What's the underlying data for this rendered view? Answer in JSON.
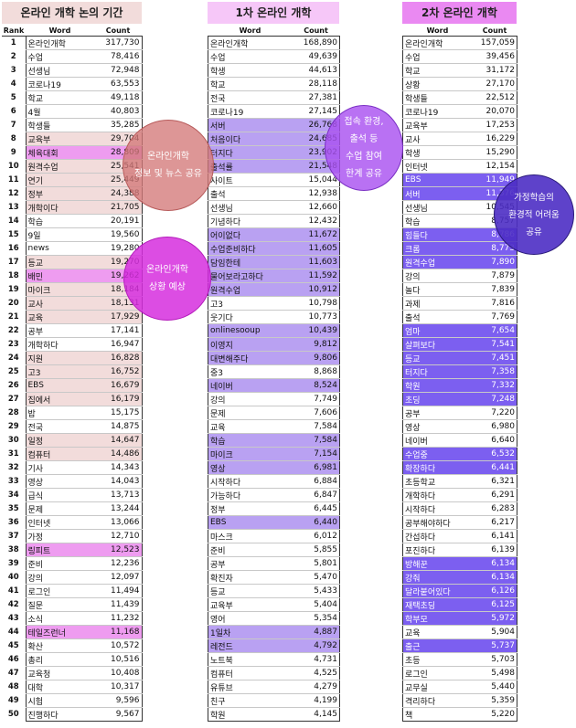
{
  "panels": [
    {
      "title": "온라인 개학 논의 기간",
      "title_color": "#f2dcdb",
      "headers": {
        "rank": "Rank",
        "word": "Word",
        "count": "Count"
      },
      "rows": [
        {
          "rank": "1",
          "word": "온라인개학",
          "count": "317,730",
          "hl": ""
        },
        {
          "rank": "2",
          "word": "수업",
          "count": "78,416",
          "hl": ""
        },
        {
          "rank": "3",
          "word": "선생님",
          "count": "72,948",
          "hl": ""
        },
        {
          "rank": "4",
          "word": "코로나19",
          "count": "63,553",
          "hl": ""
        },
        {
          "rank": "5",
          "word": "학교",
          "count": "49,118",
          "hl": ""
        },
        {
          "rank": "6",
          "word": "4월",
          "count": "40,803",
          "hl": ""
        },
        {
          "rank": "7",
          "word": "학생들",
          "count": "35,285",
          "hl": ""
        },
        {
          "rank": "8",
          "word": "교육부",
          "count": "29,704",
          "hl": "#f2dcdb"
        },
        {
          "rank": "9",
          "word": "체육대회",
          "count": "28,809",
          "hl": "#ee9cf0"
        },
        {
          "rank": "10",
          "word": "원격수업",
          "count": "25,541",
          "hl": "#f2dcdb"
        },
        {
          "rank": "11",
          "word": "연기",
          "count": "25,449",
          "hl": "#f2dcdb"
        },
        {
          "rank": "12",
          "word": "정부",
          "count": "24,388",
          "hl": "#f2dcdb"
        },
        {
          "rank": "13",
          "word": "개학이다",
          "count": "21,705",
          "hl": "#f2dcdb"
        },
        {
          "rank": "14",
          "word": "학습",
          "count": "20,191",
          "hl": ""
        },
        {
          "rank": "15",
          "word": "9일",
          "count": "19,560",
          "hl": ""
        },
        {
          "rank": "16",
          "word": "news",
          "count": "19,280",
          "hl": ""
        },
        {
          "rank": "17",
          "word": "등교",
          "count": "19,270",
          "hl": "#f2dcdb"
        },
        {
          "rank": "18",
          "word": "배민",
          "count": "19,262",
          "hl": "#ee9cf0"
        },
        {
          "rank": "19",
          "word": "마이크",
          "count": "18,184",
          "hl": "#f2dcdb"
        },
        {
          "rank": "20",
          "word": "교사",
          "count": "18,131",
          "hl": "#f2dcdb"
        },
        {
          "rank": "21",
          "word": "교육",
          "count": "17,929",
          "hl": "#f2dcdb"
        },
        {
          "rank": "22",
          "word": "공부",
          "count": "17,141",
          "hl": ""
        },
        {
          "rank": "23",
          "word": "개학하다",
          "count": "16,947",
          "hl": ""
        },
        {
          "rank": "24",
          "word": "지원",
          "count": "16,828",
          "hl": "#f2dcdb"
        },
        {
          "rank": "25",
          "word": "고3",
          "count": "16,752",
          "hl": "#f2dcdb"
        },
        {
          "rank": "26",
          "word": "EBS",
          "count": "16,679",
          "hl": "#f2dcdb"
        },
        {
          "rank": "27",
          "word": "집에서",
          "count": "16,179",
          "hl": "#f2dcdb"
        },
        {
          "rank": "28",
          "word": "밥",
          "count": "15,175",
          "hl": ""
        },
        {
          "rank": "29",
          "word": "전국",
          "count": "14,875",
          "hl": ""
        },
        {
          "rank": "30",
          "word": "일정",
          "count": "14,647",
          "hl": "#f2dcdb"
        },
        {
          "rank": "31",
          "word": "컴퓨터",
          "count": "14,486",
          "hl": "#f2dcdb"
        },
        {
          "rank": "32",
          "word": "기사",
          "count": "14,343",
          "hl": ""
        },
        {
          "rank": "33",
          "word": "영상",
          "count": "14,043",
          "hl": ""
        },
        {
          "rank": "34",
          "word": "급식",
          "count": "13,713",
          "hl": ""
        },
        {
          "rank": "35",
          "word": "문제",
          "count": "13,244",
          "hl": ""
        },
        {
          "rank": "36",
          "word": "인터넷",
          "count": "13,066",
          "hl": ""
        },
        {
          "rank": "37",
          "word": "가정",
          "count": "12,710",
          "hl": ""
        },
        {
          "rank": "38",
          "word": "링피트",
          "count": "12,523",
          "hl": "#ee9cf0"
        },
        {
          "rank": "39",
          "word": "준비",
          "count": "12,236",
          "hl": ""
        },
        {
          "rank": "40",
          "word": "강의",
          "count": "12,097",
          "hl": ""
        },
        {
          "rank": "41",
          "word": "로그인",
          "count": "11,494",
          "hl": ""
        },
        {
          "rank": "42",
          "word": "질문",
          "count": "11,439",
          "hl": ""
        },
        {
          "rank": "43",
          "word": "소식",
          "count": "11,232",
          "hl": ""
        },
        {
          "rank": "44",
          "word": "테일즈런너",
          "count": "11,168",
          "hl": "#ee9cf0"
        },
        {
          "rank": "45",
          "word": "확산",
          "count": "10,572",
          "hl": ""
        },
        {
          "rank": "46",
          "word": "총리",
          "count": "10,516",
          "hl": ""
        },
        {
          "rank": "47",
          "word": "교육청",
          "count": "10,408",
          "hl": ""
        },
        {
          "rank": "48",
          "word": "대학",
          "count": "10,317",
          "hl": ""
        },
        {
          "rank": "49",
          "word": "시험",
          "count": "9,596",
          "hl": ""
        },
        {
          "rank": "50",
          "word": "진행하다",
          "count": "9,567",
          "hl": ""
        }
      ]
    },
    {
      "title": "1차 온라인 개학",
      "title_color": "#f6c7f8",
      "headers": {
        "word": "Word",
        "count": "Count"
      },
      "rows": [
        {
          "word": "온라인개학",
          "count": "168,890",
          "hl": ""
        },
        {
          "word": "수업",
          "count": "49,639",
          "hl": ""
        },
        {
          "word": "학생",
          "count": "44,613",
          "hl": ""
        },
        {
          "word": "학교",
          "count": "28,118",
          "hl": ""
        },
        {
          "word": "전국",
          "count": "27,381",
          "hl": ""
        },
        {
          "word": "코로나19",
          "count": "27,145",
          "hl": ""
        },
        {
          "word": "서버",
          "count": "26,768",
          "hl": "#b9a1f2"
        },
        {
          "word": "처음이다",
          "count": "24,685",
          "hl": "#b9a1f2"
        },
        {
          "word": "터지다",
          "count": "23,902",
          "hl": "#b9a1f2"
        },
        {
          "word": "출석률",
          "count": "21,548",
          "hl": "#b9a1f2"
        },
        {
          "word": "사이트",
          "count": "15,044",
          "hl": ""
        },
        {
          "word": "출석",
          "count": "12,938",
          "hl": ""
        },
        {
          "word": "선생님",
          "count": "12,660",
          "hl": ""
        },
        {
          "word": "기념하다",
          "count": "12,432",
          "hl": ""
        },
        {
          "word": "어이없다",
          "count": "11,672",
          "hl": "#b9a1f2"
        },
        {
          "word": "수업준비하다",
          "count": "11,605",
          "hl": "#b9a1f2"
        },
        {
          "word": "담임한테",
          "count": "11,603",
          "hl": "#b9a1f2"
        },
        {
          "word": "물어보라고하다",
          "count": "11,592",
          "hl": "#b9a1f2"
        },
        {
          "word": "원격수업",
          "count": "10,912",
          "hl": "#b9a1f2"
        },
        {
          "word": "고3",
          "count": "10,798",
          "hl": ""
        },
        {
          "word": "웃기다",
          "count": "10,773",
          "hl": ""
        },
        {
          "word": "onlinesooup",
          "count": "10,439",
          "hl": "#b9a1f2"
        },
        {
          "word": "이영지",
          "count": "9,812",
          "hl": "#b9a1f2"
        },
        {
          "word": "대변해주다",
          "count": "9,806",
          "hl": "#b9a1f2"
        },
        {
          "word": "중3",
          "count": "8,868",
          "hl": ""
        },
        {
          "word": "네이버",
          "count": "8,524",
          "hl": "#b9a1f2"
        },
        {
          "word": "강의",
          "count": "7,749",
          "hl": ""
        },
        {
          "word": "문제",
          "count": "7,606",
          "hl": ""
        },
        {
          "word": "교육",
          "count": "7,584",
          "hl": ""
        },
        {
          "word": "학습",
          "count": "7,584",
          "hl": "#b9a1f2"
        },
        {
          "word": "마이크",
          "count": "7,154",
          "hl": "#b9a1f2"
        },
        {
          "word": "영상",
          "count": "6,981",
          "hl": "#b9a1f2"
        },
        {
          "word": "시작하다",
          "count": "6,884",
          "hl": ""
        },
        {
          "word": "가능하다",
          "count": "6,847",
          "hl": ""
        },
        {
          "word": "정부",
          "count": "6,445",
          "hl": ""
        },
        {
          "word": "EBS",
          "count": "6,440",
          "hl": "#b9a1f2"
        },
        {
          "word": "마스크",
          "count": "6,012",
          "hl": ""
        },
        {
          "word": "준비",
          "count": "5,855",
          "hl": ""
        },
        {
          "word": "공부",
          "count": "5,801",
          "hl": ""
        },
        {
          "word": "확진자",
          "count": "5,470",
          "hl": ""
        },
        {
          "word": "등교",
          "count": "5,433",
          "hl": ""
        },
        {
          "word": "교육부",
          "count": "5,404",
          "hl": ""
        },
        {
          "word": "영어",
          "count": "5,354",
          "hl": ""
        },
        {
          "word": "1일차",
          "count": "4,887",
          "hl": "#b9a1f2"
        },
        {
          "word": "레전드",
          "count": "4,792",
          "hl": "#b9a1f2"
        },
        {
          "word": "노트북",
          "count": "4,731",
          "hl": ""
        },
        {
          "word": "컴퓨터",
          "count": "4,525",
          "hl": ""
        },
        {
          "word": "유튜브",
          "count": "4,279",
          "hl": ""
        },
        {
          "word": "친구",
          "count": "4,199",
          "hl": ""
        },
        {
          "word": "학원",
          "count": "4,145",
          "hl": ""
        }
      ]
    },
    {
      "title": "2차 온라인 개학",
      "title_color": "#ea89f2",
      "headers": {
        "word": "Word",
        "count": "Count"
      },
      "rows": [
        {
          "word": "온라인개학",
          "count": "157,059",
          "hl": ""
        },
        {
          "word": "수업",
          "count": "39,456",
          "hl": ""
        },
        {
          "word": "학교",
          "count": "31,172",
          "hl": ""
        },
        {
          "word": "상황",
          "count": "27,170",
          "hl": ""
        },
        {
          "word": "학생들",
          "count": "22,512",
          "hl": ""
        },
        {
          "word": "코로나19",
          "count": "20,070",
          "hl": ""
        },
        {
          "word": "교육부",
          "count": "17,253",
          "hl": ""
        },
        {
          "word": "교사",
          "count": "16,229",
          "hl": ""
        },
        {
          "word": "학생",
          "count": "15,290",
          "hl": ""
        },
        {
          "word": "인터넷",
          "count": "12,154",
          "hl": ""
        },
        {
          "word": "EBS",
          "count": "11,949",
          "hl": "#7c5ff0"
        },
        {
          "word": "서버",
          "count": "11,376",
          "hl": "#7c5ff0"
        },
        {
          "word": "선생님",
          "count": "10,545",
          "hl": ""
        },
        {
          "word": "학습",
          "count": "8,757",
          "hl": ""
        },
        {
          "word": "힘들다",
          "count": "8,786",
          "hl": "#7c5ff0"
        },
        {
          "word": "크롬",
          "count": "8,773",
          "hl": "#7c5ff0"
        },
        {
          "word": "원격수업",
          "count": "7,890",
          "hl": "#7c5ff0"
        },
        {
          "word": "강의",
          "count": "7,879",
          "hl": ""
        },
        {
          "word": "놀다",
          "count": "7,839",
          "hl": ""
        },
        {
          "word": "과제",
          "count": "7,816",
          "hl": ""
        },
        {
          "word": "출석",
          "count": "7,769",
          "hl": ""
        },
        {
          "word": "엄마",
          "count": "7,654",
          "hl": "#7c5ff0"
        },
        {
          "word": "살펴보다",
          "count": "7,541",
          "hl": "#7c5ff0"
        },
        {
          "word": "등교",
          "count": "7,451",
          "hl": "#7c5ff0"
        },
        {
          "word": "터지다",
          "count": "7,358",
          "hl": "#7c5ff0"
        },
        {
          "word": "학원",
          "count": "7,332",
          "hl": "#7c5ff0"
        },
        {
          "word": "초딩",
          "count": "7,248",
          "hl": "#7c5ff0"
        },
        {
          "word": "공부",
          "count": "7,220",
          "hl": ""
        },
        {
          "word": "영상",
          "count": "6,980",
          "hl": ""
        },
        {
          "word": "네이버",
          "count": "6,640",
          "hl": ""
        },
        {
          "word": "수업중",
          "count": "6,532",
          "hl": "#7c5ff0"
        },
        {
          "word": "확장하다",
          "count": "6,441",
          "hl": "#7c5ff0"
        },
        {
          "word": "초등학교",
          "count": "6,321",
          "hl": ""
        },
        {
          "word": "개학하다",
          "count": "6,291",
          "hl": ""
        },
        {
          "word": "시작하다",
          "count": "6,283",
          "hl": ""
        },
        {
          "word": "공부해야하다",
          "count": "6,217",
          "hl": ""
        },
        {
          "word": "간섭하다",
          "count": "6,141",
          "hl": ""
        },
        {
          "word": "포진하다",
          "count": "6,139",
          "hl": ""
        },
        {
          "word": "방해꾼",
          "count": "6,134",
          "hl": "#7c5ff0"
        },
        {
          "word": "강줘",
          "count": "6,134",
          "hl": "#7c5ff0"
        },
        {
          "word": "달라붙어있다",
          "count": "6,126",
          "hl": "#7c5ff0"
        },
        {
          "word": "재택초딩",
          "count": "6,125",
          "hl": "#7c5ff0"
        },
        {
          "word": "학부모",
          "count": "5,972",
          "hl": "#7c5ff0"
        },
        {
          "word": "교육",
          "count": "5,904",
          "hl": ""
        },
        {
          "word": "출근",
          "count": "5,737",
          "hl": "#7c5ff0"
        },
        {
          "word": "초등",
          "count": "5,703",
          "hl": ""
        },
        {
          "word": "로그인",
          "count": "5,498",
          "hl": ""
        },
        {
          "word": "교무실",
          "count": "5,440",
          "hl": ""
        },
        {
          "word": "격리하다",
          "count": "5,359",
          "hl": ""
        },
        {
          "word": "책",
          "count": "5,220",
          "hl": ""
        }
      ]
    }
  ],
  "bubbles": [
    {
      "text": "온라인개학\n정보 및 뉴스 공유",
      "color": "rgba(212,120,120,0.78)",
      "border": "#b85c5c"
    },
    {
      "text": "온라인개학\n상황 예상",
      "color": "rgba(214,46,222,0.85)",
      "border": "#b41dbb"
    },
    {
      "text": "접속 환경,\n출석 등\n수업 참여\n한계 공유",
      "color": "rgba(170,82,240,0.82)",
      "border": "#7a2fc4"
    },
    {
      "text": "가정학습의\n환경적 어려움\n공유",
      "color": "rgba(76,46,196,0.9)",
      "border": "#2a1a7a"
    }
  ]
}
